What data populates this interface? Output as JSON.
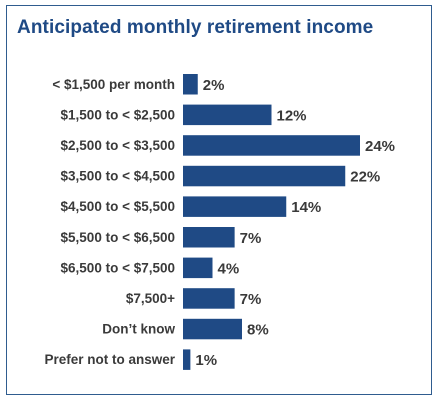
{
  "chart_data": {
    "type": "bar",
    "orientation": "horizontal",
    "title": "Anticipated monthly retirement income",
    "categories": [
      "< $1,500 per month",
      "$1,500 to < $2,500",
      "$2,500 to < $3,500",
      "$3,500 to < $4,500",
      "$4,500 to < $5,500",
      "$5,500 to < $6,500",
      "$6,500 to < $7,500",
      "$7,500+",
      "Don’t know",
      "Prefer not to answer"
    ],
    "values": [
      2,
      12,
      24,
      22,
      14,
      7,
      4,
      7,
      8,
      1
    ],
    "value_labels": [
      "2%",
      "12%",
      "24%",
      "22%",
      "14%",
      "7%",
      "4%",
      "7%",
      "8%",
      "1%"
    ],
    "unit": "%",
    "xlim": [
      0,
      24
    ],
    "grid": false,
    "legend": "none",
    "bar_color": "#1f4a85",
    "title_color": "#1f4a85",
    "border_color": "#2f5c8f"
  }
}
